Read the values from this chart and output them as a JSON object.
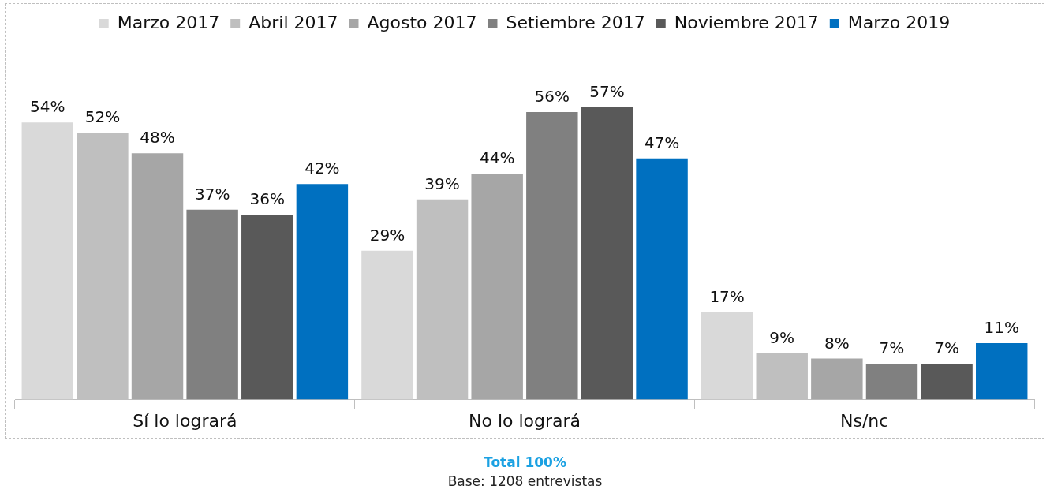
{
  "chart_data": {
    "type": "bar",
    "categories": [
      "Sí lo logrará",
      "No lo logrará",
      "Ns/nc"
    ],
    "series": [
      {
        "name": "Marzo 2017",
        "color": "#d9d9d9",
        "values": [
          54,
          29,
          17
        ],
        "value_labels": [
          "54%",
          "29%",
          "17%"
        ]
      },
      {
        "name": "Abril 2017",
        "color": "#bfbfbf",
        "values": [
          52,
          39,
          9
        ],
        "value_labels": [
          "52%",
          "39%",
          "9%"
        ]
      },
      {
        "name": "Agosto 2017",
        "color": "#a6a6a6",
        "values": [
          48,
          44,
          8
        ],
        "value_labels": [
          "48%",
          "44%",
          "8%"
        ]
      },
      {
        "name": "Setiembre 2017",
        "color": "#808080",
        "values": [
          37,
          56,
          7
        ],
        "value_labels": [
          "37%",
          "56%",
          "7%"
        ]
      },
      {
        "name": "Noviembre 2017",
        "color": "#595959",
        "values": [
          36,
          57,
          7
        ],
        "value_labels": [
          "36%",
          "57%",
          "7%"
        ]
      },
      {
        "name": "Marzo 2019",
        "color": "#0070c0",
        "values": [
          42,
          47,
          11
        ],
        "value_labels": [
          "42%",
          "47%",
          "11%"
        ]
      }
    ],
    "legend": "top",
    "grid": false,
    "tick_labels": "x",
    "annotations": [
      "Total 100%",
      "Base: 1208 entrevistas"
    ]
  }
}
